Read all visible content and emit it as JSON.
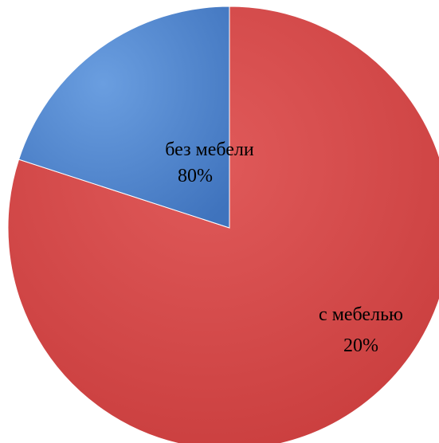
{
  "chart_data": {
    "type": "pie",
    "series": [
      {
        "label": "без мебели",
        "value": 80,
        "percent_label": "80%",
        "color": "#cf4444"
      },
      {
        "label": "с мебелью",
        "value": 20,
        "percent_label": "20%",
        "color": "#4f86cf"
      }
    ],
    "start_angle_deg": 90,
    "direction": "clockwise",
    "legend": "none",
    "title": ""
  }
}
